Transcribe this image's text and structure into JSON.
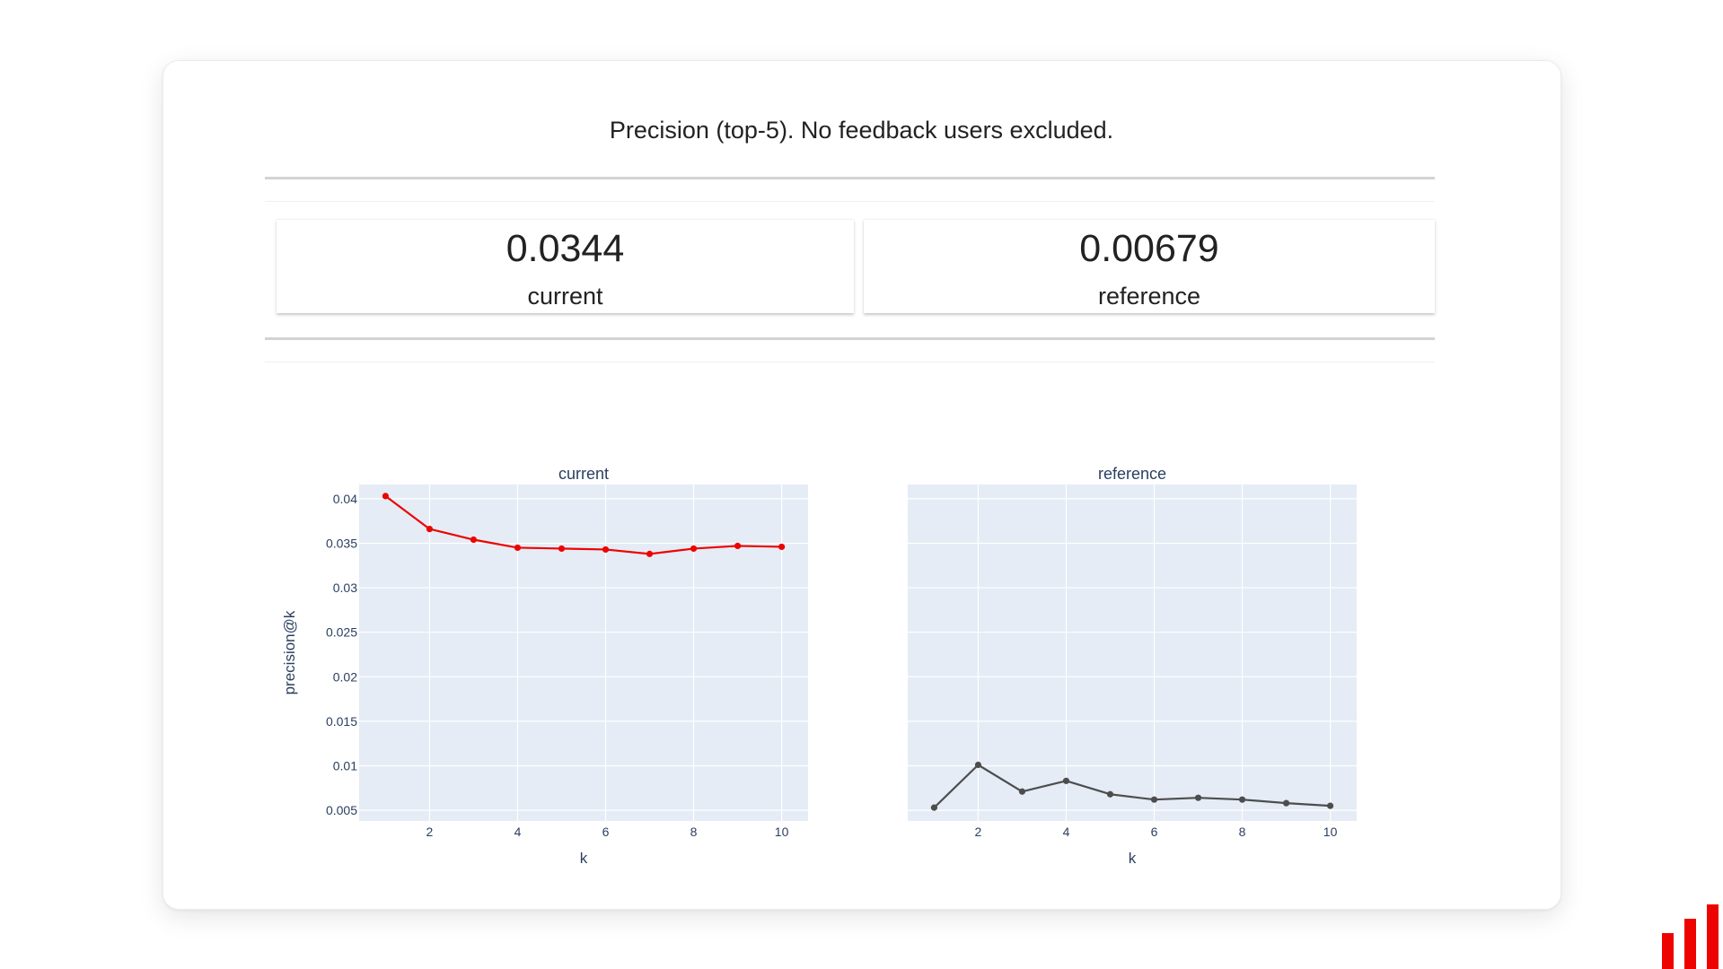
{
  "header": {
    "title": "Precision (top-5). No feedback users excluded."
  },
  "counters": [
    {
      "value": "0.0344",
      "label": "current"
    },
    {
      "value": "0.00679",
      "label": "reference"
    }
  ],
  "colors": {
    "current_line": "#ed0400",
    "reference_line": "#4d4d4d",
    "plot_bg": "#e5ecf6",
    "grid": "#ffffff",
    "tick_text": "#2a3f5f",
    "logo": "#ed0400"
  },
  "chart_data": [
    {
      "type": "line",
      "title": "current",
      "xlabel": "k",
      "ylabel": "precision@k",
      "x": [
        1,
        2,
        3,
        4,
        5,
        6,
        7,
        8,
        9,
        10
      ],
      "y": [
        0.0403,
        0.0366,
        0.0354,
        0.0345,
        0.0344,
        0.0343,
        0.0338,
        0.0344,
        0.0347,
        0.0346
      ],
      "xlim": [
        0.4,
        10.6
      ],
      "ylim": [
        0.0038,
        0.0416
      ],
      "xticks": [
        2,
        4,
        6,
        8,
        10
      ],
      "yticks": [
        0.005,
        0.01,
        0.015,
        0.02,
        0.025,
        0.03,
        0.035,
        0.04
      ],
      "ytick_labels": [
        "0.005",
        "0.01",
        "0.015",
        "0.02",
        "0.025",
        "0.03",
        "0.035",
        "0.04"
      ],
      "grid": true
    },
    {
      "type": "line",
      "title": "reference",
      "xlabel": "k",
      "ylabel": "",
      "x": [
        1,
        2,
        3,
        4,
        5,
        6,
        7,
        8,
        9,
        10
      ],
      "y": [
        0.0053,
        0.0101,
        0.0071,
        0.0083,
        0.0068,
        0.0062,
        0.0064,
        0.0062,
        0.0058,
        0.0055
      ],
      "xlim": [
        0.4,
        10.6
      ],
      "ylim": [
        0.0038,
        0.0416
      ],
      "xticks": [
        2,
        4,
        6,
        8,
        10
      ],
      "yticks": [
        0.005,
        0.01,
        0.015,
        0.02,
        0.025,
        0.03,
        0.035,
        0.04
      ],
      "ytick_labels": [],
      "grid": true
    }
  ]
}
